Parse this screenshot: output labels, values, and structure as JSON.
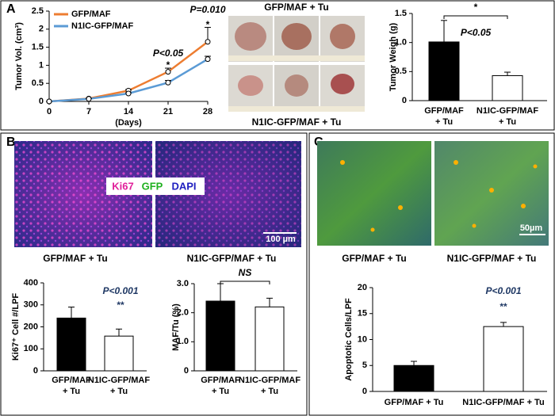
{
  "panels": {
    "letters": [
      "A",
      "B",
      "C"
    ],
    "a_images": {
      "top": "GFP/MAF + Tu",
      "bottom": "N1IC-GFP/MAF + Tu"
    },
    "b_image": {
      "captions": [
        "GFP/MAF + Tu",
        "N1IC-GFP/MAF + Tu"
      ],
      "stains": [
        "Ki67",
        "GFP",
        "DAPI"
      ],
      "scale": "100 µm"
    },
    "c_image": {
      "captions": [
        "GFP/MAF + Tu",
        "N1IC-GFP/MAF + Tu"
      ],
      "scale": "50µm"
    }
  },
  "chart_data": [
    {
      "type": "line",
      "x_label": "(Days)",
      "y_label": "Tumor Vol. (cm³)",
      "x": [
        0,
        7,
        14,
        21,
        28
      ],
      "xlim": [
        0,
        28
      ],
      "xticks": [
        0,
        7,
        14,
        21,
        28
      ],
      "ylim": [
        0,
        2.5
      ],
      "yticks": [
        0,
        0.5,
        1,
        1.5,
        2,
        2.5
      ],
      "legend": "upper left",
      "series": [
        {
          "name": "GFP/MAF",
          "color": "#ed7d31",
          "values": [
            0,
            0.08,
            0.3,
            0.82,
            1.65
          ],
          "errors": [
            0,
            0.01,
            0.03,
            0.1,
            0.4
          ]
        },
        {
          "name": "N1IC-GFP/MAF",
          "color": "#5b9bd5",
          "values": [
            0,
            0.07,
            0.22,
            0.52,
            1.17
          ],
          "errors": [
            0,
            0.01,
            0.02,
            0.06,
            0.08
          ]
        }
      ],
      "annotations": [
        "P=0.010",
        "*",
        "P<0.05",
        "*"
      ]
    },
    {
      "type": "bar",
      "y_label": "Tumor Weigh (g)",
      "categories": [
        [
          "GFP/MAF",
          "+ Tu"
        ],
        [
          "N1IC-GFP/MAF",
          "+ Tu"
        ]
      ],
      "colors": [
        "#000000",
        "#ffffff"
      ],
      "values": [
        1.01,
        0.43
      ],
      "errors": [
        0.37,
        0.06
      ],
      "ylim": [
        0,
        1.5
      ],
      "yticks": [
        0,
        0.5,
        {
          "value": 1,
          "label": "1.0"
        },
        1.5
      ],
      "annotations": [
        "*",
        "P<0.05"
      ]
    },
    {
      "type": "bar",
      "y_label": "Ki67⁺ Cell #/LPF",
      "categories": [
        [
          "GFP/MAF",
          "+ Tu"
        ],
        [
          "N1IC-GFP/MAF",
          "+ Tu"
        ]
      ],
      "colors": [
        "#000000",
        "#ffffff"
      ],
      "values": [
        240,
        158
      ],
      "errors": [
        50,
        32
      ],
      "ylim": [
        0,
        400
      ],
      "yticks": [
        0,
        100,
        200,
        300,
        400
      ],
      "annotations": [
        "P<0.001",
        "**"
      ]
    },
    {
      "type": "bar",
      "y_label": "MAF/Tu (%)",
      "categories": [
        [
          "GFP/MAF",
          "+ Tu"
        ],
        [
          "N1IC-GFP/MAF",
          "+ Tu"
        ]
      ],
      "colors": [
        "#000000",
        "#ffffff"
      ],
      "values": [
        2.4,
        2.2
      ],
      "errors": [
        0.6,
        0.3
      ],
      "ylim": [
        0,
        3
      ],
      "yticks": [
        0,
        {
          "value": 1,
          "label": "1.0"
        },
        {
          "value": 2,
          "label": "2.0"
        },
        {
          "value": 3,
          "label": "3.0"
        }
      ],
      "annotations": [
        "NS"
      ]
    },
    {
      "type": "bar",
      "y_label": "Apoptotic Cells/LPF",
      "categories": [
        [
          "GFP/MAF + Tu"
        ],
        [
          "N1IC-GFP/MAF + Tu"
        ]
      ],
      "colors": [
        "#000000",
        "#ffffff"
      ],
      "values": [
        5,
        12.5
      ],
      "errors": [
        0.8,
        0.8
      ],
      "ylim": [
        0,
        20
      ],
      "yticks": [
        0,
        5,
        10,
        15,
        20
      ],
      "annotations": [
        "P<0.001",
        "**"
      ]
    }
  ]
}
